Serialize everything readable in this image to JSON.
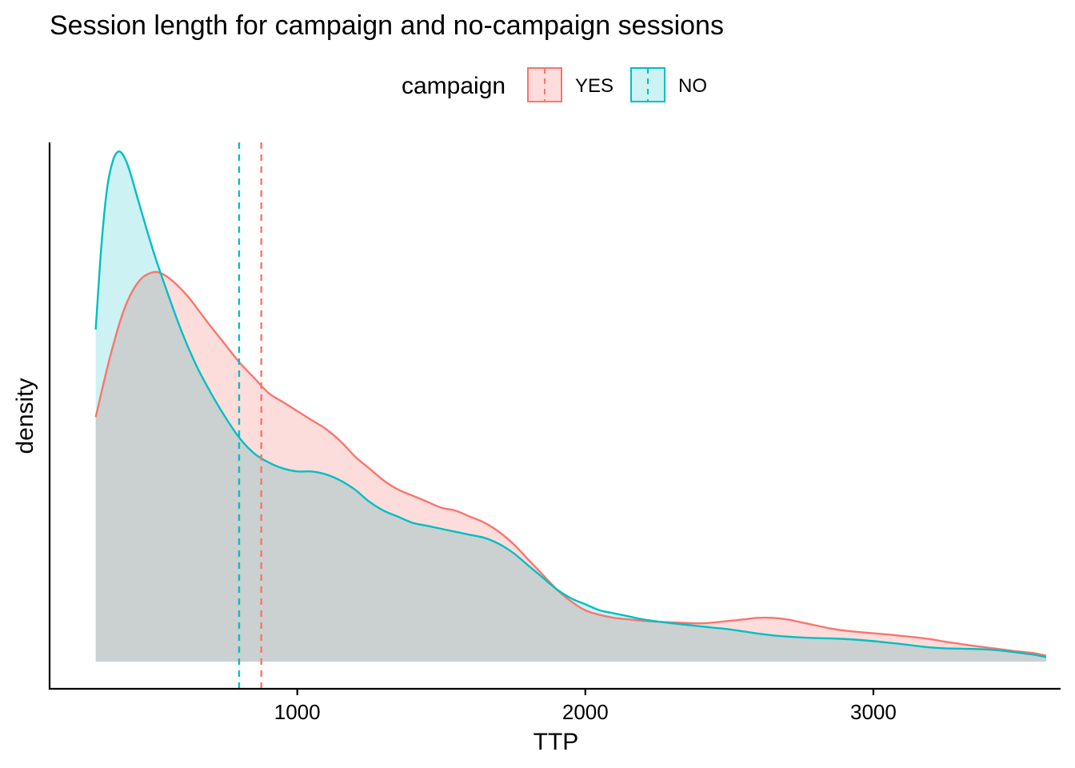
{
  "chart_data": {
    "type": "area",
    "title": "Session length for campaign and no-campaign sessions",
    "xlabel": "TTP",
    "ylabel": "density",
    "xlim": [
      140,
      3650
    ],
    "ylim": [
      -0.09,
      1.72
    ],
    "x_ticks": [
      1000,
      2000,
      3000
    ],
    "x_tick_labels": [
      "1000",
      "2000",
      "3000"
    ],
    "y_ticks": [],
    "grid": false,
    "legend": {
      "title": "campaign",
      "position": "top",
      "entries": [
        "YES",
        "NO"
      ]
    },
    "series": [
      {
        "name": "YES",
        "color": "#F8766D",
        "fill": "#FDDDDB",
        "mean": 875,
        "x": [
          300,
          350,
          400,
          450,
          500,
          540,
          580,
          620,
          660,
          700,
          750,
          800,
          850,
          900,
          950,
          1000,
          1050,
          1100,
          1150,
          1200,
          1250,
          1300,
          1350,
          1400,
          1450,
          1500,
          1550,
          1600,
          1650,
          1700,
          1750,
          1800,
          1850,
          1900,
          1950,
          2000,
          2050,
          2100,
          2150,
          2200,
          2250,
          2300,
          2350,
          2400,
          2450,
          2500,
          2550,
          2600,
          2650,
          2700,
          2750,
          2800,
          2850,
          2900,
          2950,
          3000,
          3050,
          3100,
          3150,
          3200,
          3250,
          3300,
          3350,
          3400,
          3450,
          3500,
          3550,
          3600
        ],
        "y": [
          0.81,
          1.01,
          1.17,
          1.26,
          1.29,
          1.28,
          1.25,
          1.21,
          1.16,
          1.11,
          1.05,
          0.99,
          0.94,
          0.89,
          0.86,
          0.83,
          0.8,
          0.77,
          0.73,
          0.68,
          0.64,
          0.6,
          0.57,
          0.55,
          0.53,
          0.51,
          0.5,
          0.48,
          0.46,
          0.43,
          0.39,
          0.34,
          0.29,
          0.24,
          0.2,
          0.17,
          0.155,
          0.145,
          0.14,
          0.135,
          0.132,
          0.13,
          0.128,
          0.127,
          0.13,
          0.135,
          0.14,
          0.145,
          0.145,
          0.14,
          0.13,
          0.12,
          0.11,
          0.103,
          0.098,
          0.094,
          0.09,
          0.085,
          0.08,
          0.074,
          0.066,
          0.059,
          0.052,
          0.046,
          0.04,
          0.034,
          0.029,
          0.02
        ]
      },
      {
        "name": "NO",
        "color": "#00BFC4",
        "fill": "#CCF2F3",
        "mean": 798,
        "x": [
          300,
          320,
          340,
          360,
          380,
          400,
          420,
          450,
          500,
          550,
          600,
          650,
          700,
          750,
          800,
          850,
          900,
          950,
          1000,
          1050,
          1100,
          1150,
          1200,
          1250,
          1300,
          1350,
          1400,
          1450,
          1500,
          1550,
          1600,
          1650,
          1700,
          1750,
          1800,
          1850,
          1900,
          1950,
          2000,
          2050,
          2100,
          2150,
          2200,
          2250,
          2300,
          2350,
          2400,
          2450,
          2500,
          2550,
          2600,
          2650,
          2700,
          2750,
          2800,
          2850,
          2900,
          2950,
          3000,
          3050,
          3100,
          3150,
          3200,
          3250,
          3300,
          3350,
          3400,
          3450,
          3500,
          3550,
          3600
        ],
        "y": [
          1.1,
          1.38,
          1.57,
          1.66,
          1.69,
          1.67,
          1.62,
          1.52,
          1.36,
          1.22,
          1.09,
          0.98,
          0.89,
          0.81,
          0.74,
          0.69,
          0.66,
          0.64,
          0.63,
          0.63,
          0.62,
          0.6,
          0.57,
          0.53,
          0.5,
          0.48,
          0.46,
          0.45,
          0.44,
          0.43,
          0.42,
          0.41,
          0.39,
          0.36,
          0.32,
          0.28,
          0.24,
          0.21,
          0.19,
          0.17,
          0.16,
          0.15,
          0.14,
          0.133,
          0.127,
          0.122,
          0.117,
          0.112,
          0.107,
          0.1,
          0.093,
          0.087,
          0.083,
          0.08,
          0.078,
          0.077,
          0.075,
          0.072,
          0.068,
          0.063,
          0.058,
          0.052,
          0.047,
          0.044,
          0.043,
          0.042,
          0.04,
          0.036,
          0.03,
          0.024,
          0.015
        ]
      }
    ]
  }
}
